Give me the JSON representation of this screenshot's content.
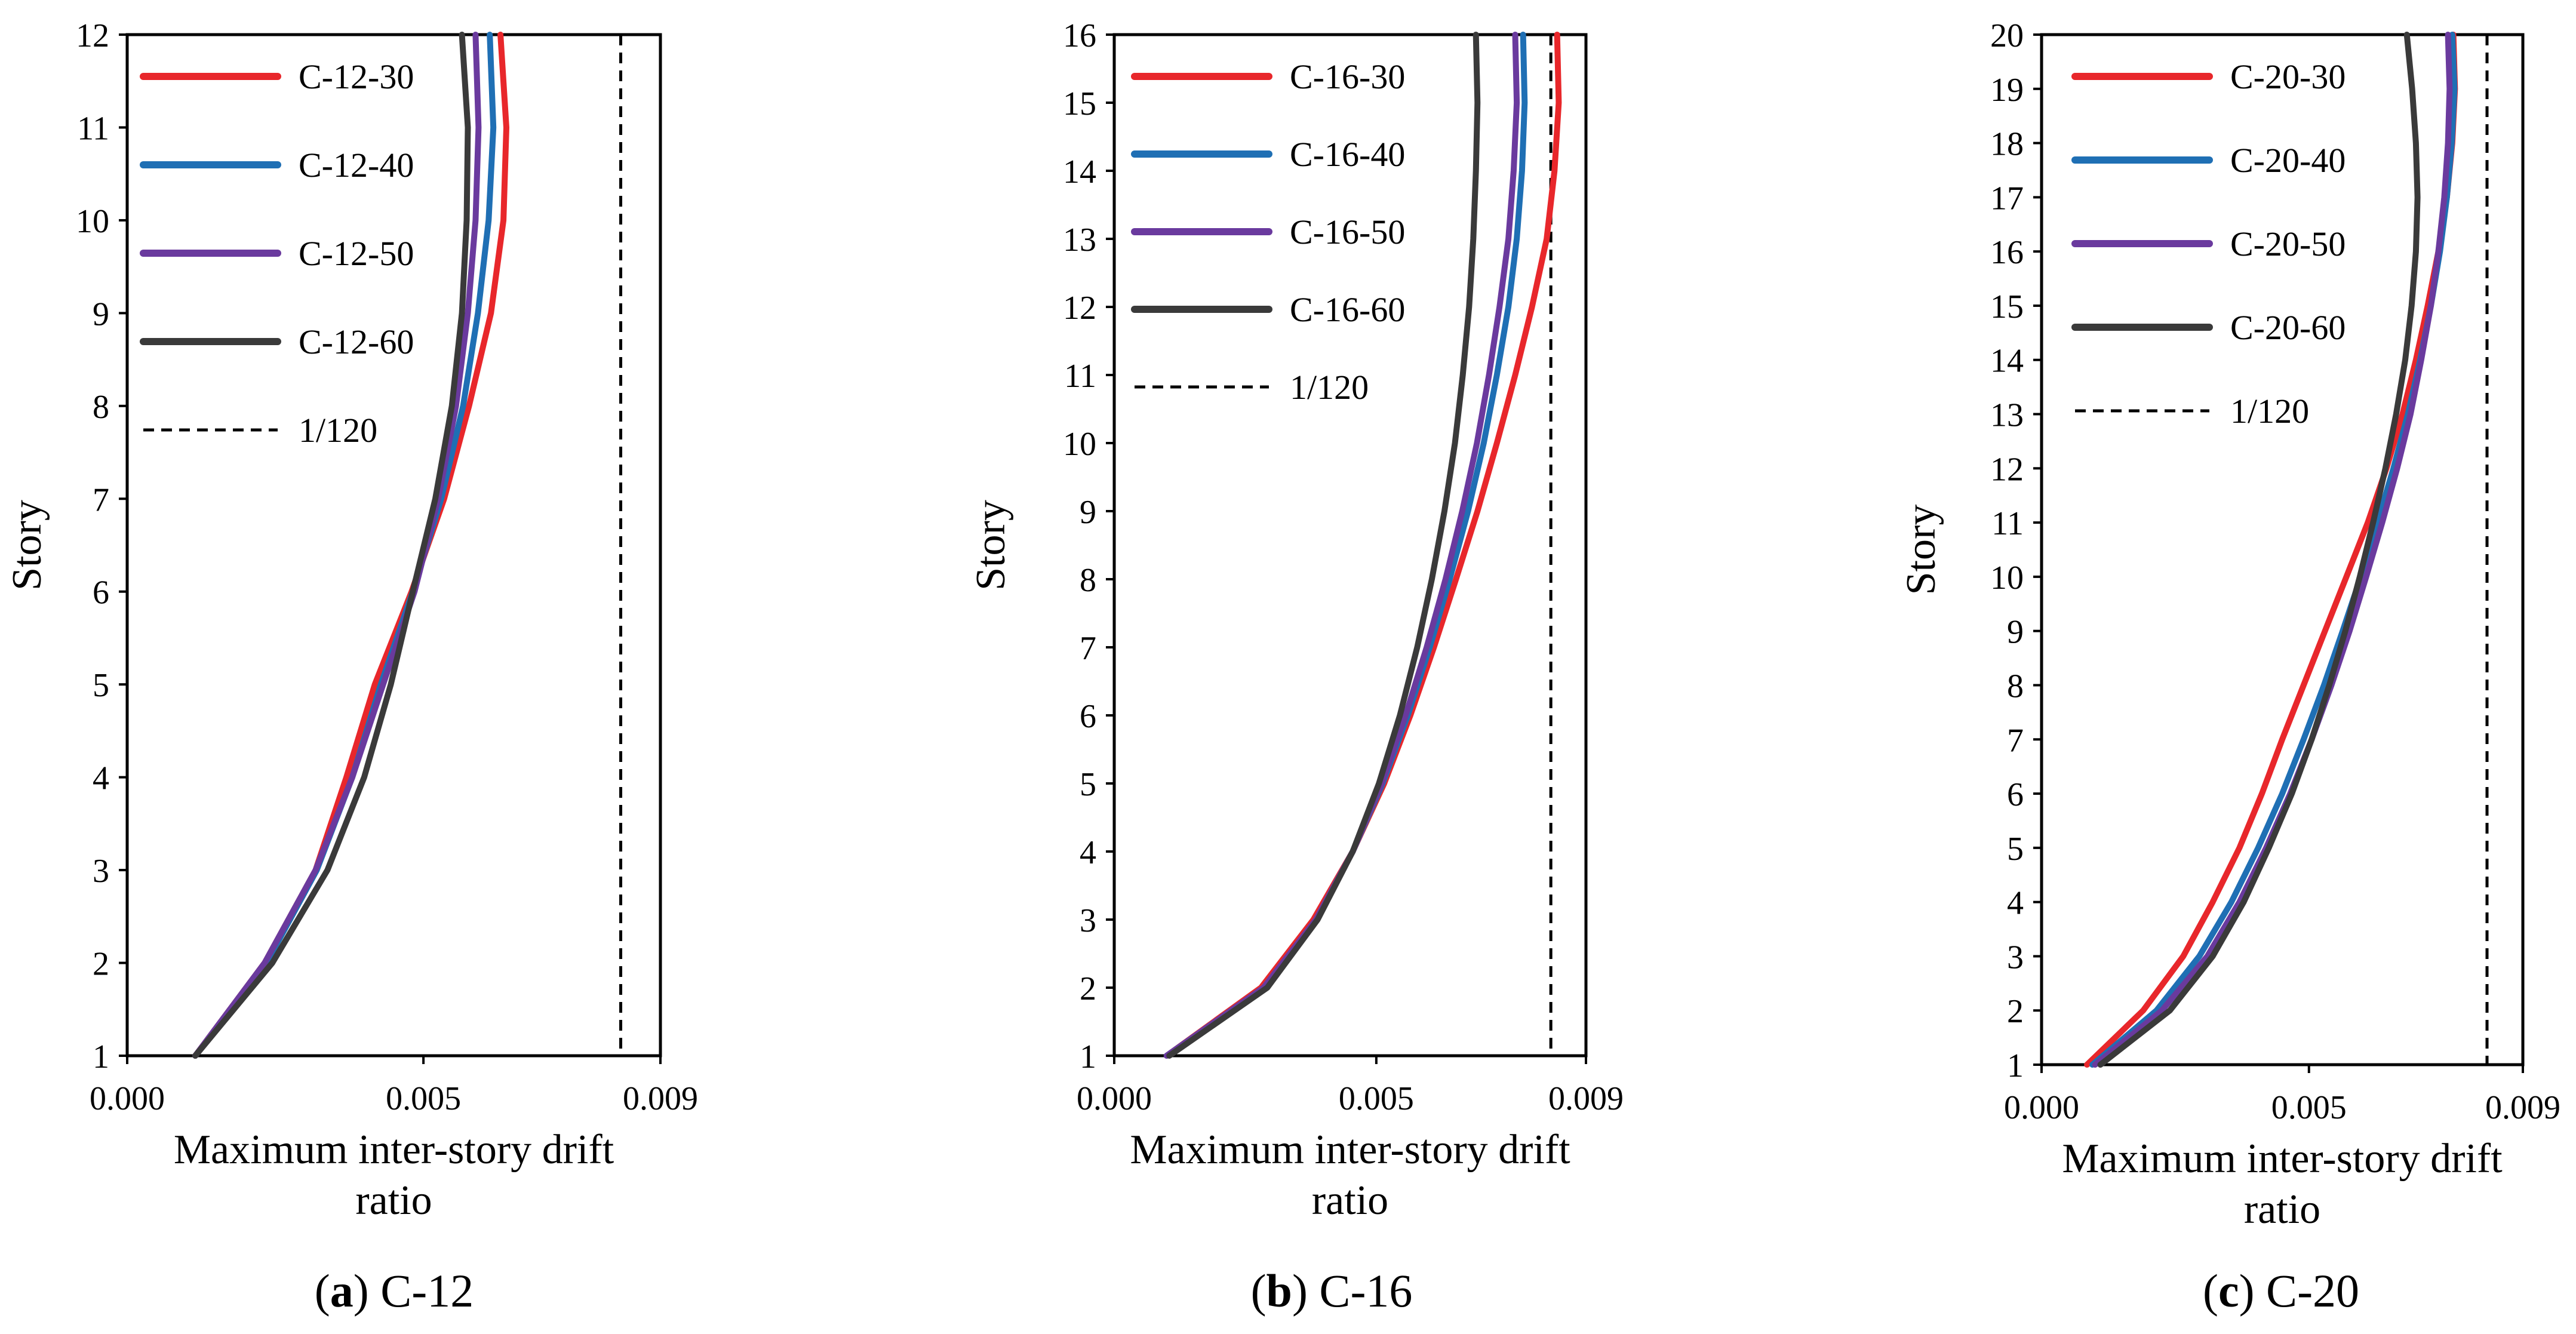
{
  "chart_data": [
    {
      "type": "line",
      "caption_letter": "a",
      "caption_text": "C-12",
      "xlabel_line1": "Maximum inter-story drift",
      "xlabel_line2": "ratio",
      "ylabel": "Story",
      "xlim": [
        0,
        0.009
      ],
      "ylim": [
        1,
        12
      ],
      "xticks": [
        "0.000",
        "0.005",
        "0.009"
      ],
      "xtick_values": [
        0,
        0.005,
        0.009
      ],
      "yticks": [
        1,
        2,
        3,
        4,
        5,
        6,
        7,
        8,
        9,
        10,
        11,
        12
      ],
      "limit_label": "1/120",
      "limit_value": 0.00833,
      "series": [
        {
          "name": "C-12-30",
          "color": "#e8272b",
          "x": [
            0.00115,
            0.00232,
            0.00318,
            0.0037,
            0.00418,
            0.0048,
            0.00535,
            0.00577,
            0.00614,
            0.00635,
            0.0064,
            0.0063
          ],
          "y": [
            1,
            2,
            3,
            4,
            5,
            6,
            7,
            8,
            9,
            10,
            11,
            12
          ]
        },
        {
          "name": "C-12-40",
          "color": "#1f6fb4",
          "x": [
            0.00115,
            0.00235,
            0.0032,
            0.0038,
            0.00428,
            0.00482,
            0.0053,
            0.00567,
            0.00592,
            0.0061,
            0.00618,
            0.00612
          ],
          "y": [
            1,
            2,
            3,
            4,
            5,
            6,
            7,
            8,
            9,
            10,
            11,
            12
          ]
        },
        {
          "name": "C-12-50",
          "color": "#6a3a9e",
          "x": [
            0.00115,
            0.00232,
            0.00318,
            0.0038,
            0.00432,
            0.00485,
            0.00525,
            0.00555,
            0.00575,
            0.00588,
            0.00593,
            0.00588
          ],
          "y": [
            1,
            2,
            3,
            4,
            5,
            6,
            7,
            8,
            9,
            10,
            11,
            12
          ]
        },
        {
          "name": "C-12-60",
          "color": "#3a3a3a",
          "x": [
            0.00115,
            0.00245,
            0.00338,
            0.004,
            0.00445,
            0.00482,
            0.0052,
            0.00548,
            0.00565,
            0.00573,
            0.00575,
            0.00565
          ],
          "y": [
            1,
            2,
            3,
            4,
            5,
            6,
            7,
            8,
            9,
            10,
            11,
            12
          ]
        }
      ]
    },
    {
      "type": "line",
      "caption_letter": "b",
      "caption_text": "C-16",
      "xlabel_line1": "Maximum inter-story drift",
      "xlabel_line2": "ratio",
      "ylabel": "Story",
      "xlim": [
        0,
        0.009
      ],
      "ylim": [
        1,
        16
      ],
      "xticks": [
        "0.000",
        "0.005",
        "0.009"
      ],
      "xtick_values": [
        0,
        0.005,
        0.009
      ],
      "yticks": [
        1,
        2,
        3,
        4,
        5,
        6,
        7,
        8,
        9,
        10,
        11,
        12,
        13,
        14,
        15,
        16
      ],
      "limit_label": "1/120",
      "limit_value": 0.00833,
      "series": [
        {
          "name": "C-16-30",
          "color": "#e8272b",
          "x": [
            0.001,
            0.0028,
            0.0038,
            0.00455,
            0.00515,
            0.00565,
            0.0061,
            0.00652,
            0.00693,
            0.0073,
            0.00765,
            0.00797,
            0.00825,
            0.0084,
            0.00848,
            0.00845
          ],
          "y": [
            1,
            2,
            3,
            4,
            5,
            6,
            7,
            8,
            9,
            10,
            11,
            12,
            13,
            14,
            15,
            16
          ]
        },
        {
          "name": "C-16-40",
          "color": "#1f6fb4",
          "x": [
            0.001,
            0.00285,
            0.00385,
            0.00455,
            0.00512,
            0.0056,
            0.00602,
            0.0064,
            0.00675,
            0.00705,
            0.0073,
            0.00752,
            0.00768,
            0.00778,
            0.00783,
            0.0078
          ],
          "y": [
            1,
            2,
            3,
            4,
            5,
            6,
            7,
            8,
            9,
            10,
            11,
            12,
            13,
            14,
            15,
            16
          ]
        },
        {
          "name": "C-16-50",
          "color": "#6a3a9e",
          "x": [
            0.001,
            0.00285,
            0.00385,
            0.00455,
            0.0051,
            0.00556,
            0.00596,
            0.00632,
            0.00664,
            0.00692,
            0.00715,
            0.00735,
            0.00752,
            0.00762,
            0.00768,
            0.00765
          ],
          "y": [
            1,
            2,
            3,
            4,
            5,
            6,
            7,
            8,
            9,
            10,
            11,
            12,
            13,
            14,
            15,
            16
          ]
        },
        {
          "name": "C-16-60",
          "color": "#3a3a3a",
          "x": [
            0.00105,
            0.00292,
            0.00388,
            0.00455,
            0.00505,
            0.00545,
            0.00578,
            0.00606,
            0.0063,
            0.0065,
            0.00665,
            0.00677,
            0.00685,
            0.0069,
            0.00693,
            0.0069
          ],
          "y": [
            1,
            2,
            3,
            4,
            5,
            6,
            7,
            8,
            9,
            10,
            11,
            12,
            13,
            14,
            15,
            16
          ]
        }
      ]
    },
    {
      "type": "line",
      "caption_letter": "c",
      "caption_text": "C-20",
      "xlabel_line1": "Maximum inter-story drift",
      "xlabel_line2": "ratio",
      "ylabel": "Story",
      "xlim": [
        0,
        0.009
      ],
      "ylim": [
        1,
        20
      ],
      "xticks": [
        "0.000",
        "0.005",
        "0.009"
      ],
      "xtick_values": [
        0,
        0.005,
        0.009
      ],
      "yticks": [
        1,
        2,
        3,
        4,
        5,
        6,
        7,
        8,
        9,
        10,
        11,
        12,
        13,
        14,
        15,
        16,
        17,
        18,
        19,
        20
      ],
      "limit_label": "1/120",
      "limit_value": 0.00833,
      "series": [
        {
          "name": "C-20-30",
          "color": "#e8272b",
          "x": [
            0.00085,
            0.0019,
            0.00265,
            0.0032,
            0.0037,
            0.00412,
            0.0045,
            0.0049,
            0.0053,
            0.0057,
            0.0061,
            0.00645,
            0.00675,
            0.007,
            0.00722,
            0.00742,
            0.00758,
            0.00768,
            0.00773,
            0.0077
          ],
          "y": [
            1,
            2,
            3,
            4,
            5,
            6,
            7,
            8,
            9,
            10,
            11,
            12,
            13,
            14,
            15,
            16,
            17,
            18,
            19,
            20
          ]
        },
        {
          "name": "C-20-40",
          "color": "#1f6fb4",
          "x": [
            0.00095,
            0.00215,
            0.00295,
            0.00355,
            0.00405,
            0.0045,
            0.0049,
            0.00528,
            0.00563,
            0.00597,
            0.00628,
            0.00658,
            0.00685,
            0.00708,
            0.00728,
            0.00745,
            0.00758,
            0.00767,
            0.00772,
            0.00768
          ],
          "y": [
            1,
            2,
            3,
            4,
            5,
            6,
            7,
            8,
            9,
            10,
            11,
            12,
            13,
            14,
            15,
            16,
            17,
            18,
            19,
            20
          ]
        },
        {
          "name": "C-20-50",
          "color": "#6a3a9e",
          "x": [
            0.001,
            0.00225,
            0.0031,
            0.0037,
            0.0042,
            0.00465,
            0.00505,
            0.00542,
            0.00576,
            0.00607,
            0.00637,
            0.00665,
            0.0069,
            0.0071,
            0.00728,
            0.00742,
            0.00753,
            0.0076,
            0.00763,
            0.0076
          ],
          "y": [
            1,
            2,
            3,
            4,
            5,
            6,
            7,
            8,
            9,
            10,
            11,
            12,
            13,
            14,
            15,
            16,
            17,
            18,
            19,
            20
          ]
        },
        {
          "name": "C-20-60",
          "color": "#3a3a3a",
          "x": [
            0.0011,
            0.0024,
            0.0032,
            0.00378,
            0.00425,
            0.00468,
            0.00505,
            0.00538,
            0.00568,
            0.00595,
            0.0062,
            0.00643,
            0.00663,
            0.0068,
            0.00692,
            0.007,
            0.00703,
            0.007,
            0.00693,
            0.00683
          ],
          "y": [
            1,
            2,
            3,
            4,
            5,
            6,
            7,
            8,
            9,
            10,
            11,
            12,
            13,
            14,
            15,
            16,
            17,
            18,
            19,
            20
          ]
        }
      ]
    }
  ]
}
